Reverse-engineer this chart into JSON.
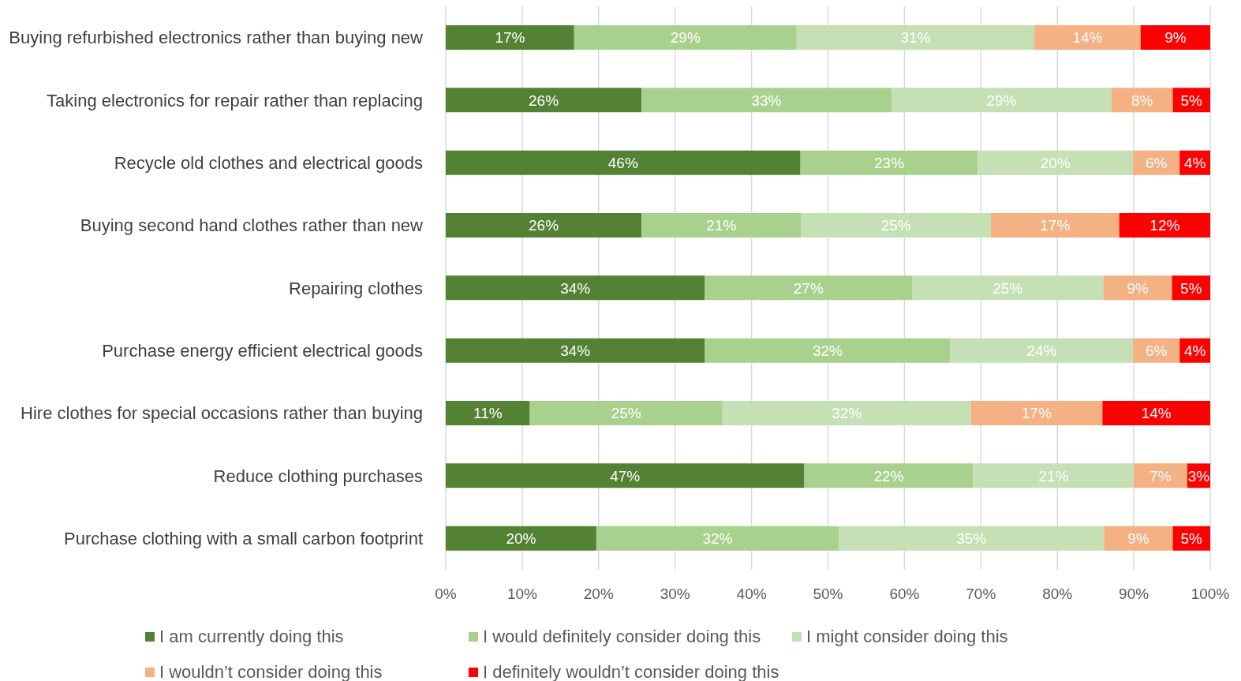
{
  "chart_data": {
    "type": "bar",
    "orientation": "horizontal",
    "stacked": true,
    "categories": [
      "Buying refurbished electronics rather than buying new",
      "Taking electronics for repair rather than replacing",
      "Recycle old clothes and electrical goods",
      "Buying second hand clothes rather than new",
      "Repairing clothes",
      "Purchase energy efficient electrical goods",
      "Hire clothes for special occasions rather than buying",
      "Reduce clothing purchases",
      "Purchase clothing with a small carbon footprint"
    ],
    "series": [
      {
        "name": "I am currently doing this",
        "color": "#548235",
        "values": [
          16.8,
          25.6,
          46.4,
          25.6,
          33.9,
          33.9,
          11.0,
          46.9,
          19.7
        ],
        "value_labels": [
          "17%",
          "26%",
          "46%",
          "26%",
          "34%",
          "34%",
          "11%",
          "47%",
          "20%"
        ]
      },
      {
        "name": "I would definitely consider doing this",
        "color": "#a9d18e",
        "values": [
          29.1,
          32.7,
          23.2,
          20.9,
          27.1,
          32.1,
          25.2,
          22.1,
          31.7
        ],
        "value_labels": [
          "29%",
          "33%",
          "23%",
          "21%",
          "27%",
          "32%",
          "25%",
          "22%",
          "32%"
        ]
      },
      {
        "name": "I might consider doing this",
        "color": "#c5e0b4",
        "values": [
          31.1,
          28.8,
          20.3,
          24.8,
          25.0,
          23.9,
          32.5,
          21.0,
          34.7
        ],
        "value_labels": [
          "31%",
          "29%",
          "20%",
          "25%",
          "25%",
          "24%",
          "32%",
          "21%",
          "35%"
        ]
      },
      {
        "name": "I wouldn’t consider doing this",
        "color": "#f4b183",
        "values": [
          13.9,
          8.0,
          6.1,
          16.8,
          9.0,
          6.1,
          17.2,
          7.0,
          9.0
        ],
        "value_labels": [
          "14%",
          "8%",
          "6%",
          "17%",
          "9%",
          "6%",
          "17%",
          "7%",
          "9%"
        ]
      },
      {
        "name": "I definitely wouldn’t consider doing this",
        "color": "#ff0000",
        "values": [
          9.1,
          4.9,
          4.0,
          11.9,
          5.0,
          4.0,
          14.1,
          3.0,
          4.9
        ],
        "value_labels": [
          "9%",
          "5%",
          "4%",
          "12%",
          "5%",
          "4%",
          "14%",
          "3%",
          "5%"
        ]
      }
    ],
    "xlim": [
      0,
      100
    ],
    "xticks": [
      {
        "value": 0,
        "label": "0%"
      },
      {
        "value": 10,
        "label": "10%"
      },
      {
        "value": 20,
        "label": "20%"
      },
      {
        "value": 30,
        "label": "30%"
      },
      {
        "value": 40,
        "label": "40%"
      },
      {
        "value": 50,
        "label": "50%"
      },
      {
        "value": 60,
        "label": "60%"
      },
      {
        "value": 70,
        "label": "70%"
      },
      {
        "value": 80,
        "label": "80%"
      },
      {
        "value": 90,
        "label": "90%"
      },
      {
        "value": 100,
        "label": "100%"
      }
    ],
    "grid": "x",
    "legend": "bottom"
  }
}
